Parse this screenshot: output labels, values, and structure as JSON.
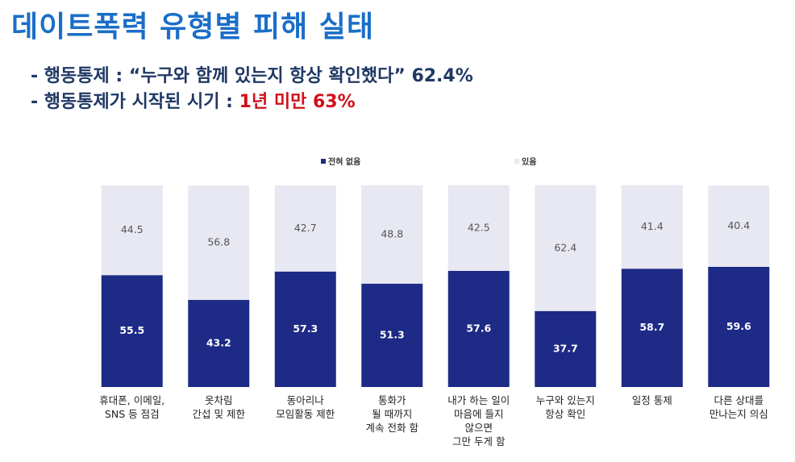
{
  "header": {
    "title": "데이트폭력 유형별 피해 실태",
    "notes": [
      {
        "text": "- 행동통제 : “누구와 함께 있는지 항상 확인했다” 62.4%"
      },
      {
        "text": "- 행동통제가 시작된 시기 : ",
        "highlight": "1년 미만 63%"
      }
    ]
  },
  "chart_data": {
    "type": "bar",
    "stacked": true,
    "categories": [
      "휴대폰, 이메일,\nSNS 등 점검",
      "옷차림\n간섭 및 제한",
      "동아리나\n모임활동 제한",
      "통화가\n될 때까지\n계속 전화 함",
      "내가 하는 일이\n마음에 들지\n않으면\n그만 두게 함",
      "누구와 있는지\n항상 확인",
      "일정 통제",
      "다른 상대를\n만나는지 의심"
    ],
    "series": [
      {
        "name": "전혀 없음",
        "color": "#1d2a86",
        "label_color": "#ffffff",
        "values": [
          55.5,
          43.2,
          57.3,
          51.3,
          57.6,
          37.7,
          58.7,
          59.6
        ]
      },
      {
        "name": "있음",
        "color": "#e7e8f1",
        "label_color": "#555555",
        "values": [
          44.5,
          56.8,
          42.7,
          48.8,
          42.5,
          62.4,
          41.4,
          40.4
        ]
      }
    ],
    "ylim": [
      0,
      100
    ]
  }
}
